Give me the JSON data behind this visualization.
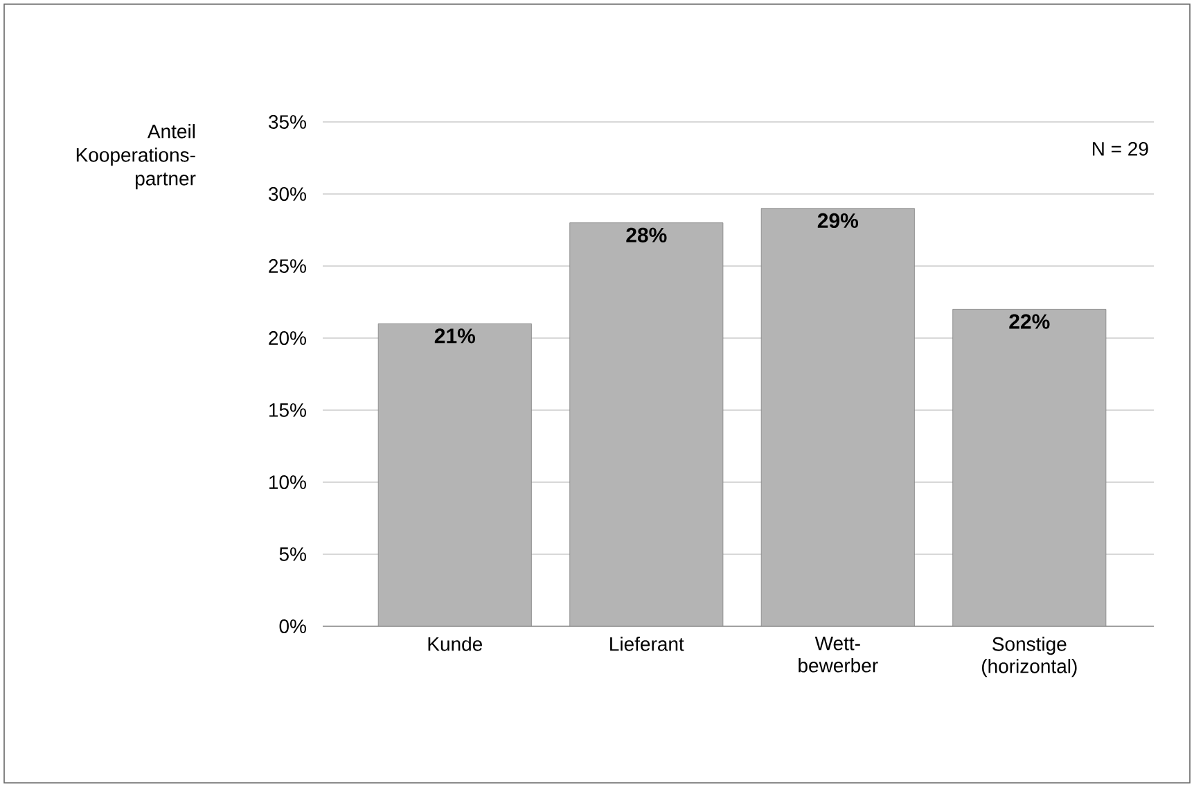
{
  "chart_data": {
    "type": "bar",
    "ylabel": "Anteil Kooperations-partner",
    "categories": [
      "Kunde",
      "Lieferant",
      "Wett- bewerber",
      "Sonstige (horizontal)"
    ],
    "values": [
      21,
      28,
      29,
      22
    ],
    "value_labels": [
      "21%",
      "28%",
      "29%",
      "22%"
    ],
    "color": "#b4b4b4",
    "ylim": [
      0,
      35
    ],
    "yticks": [
      {
        "value": 0,
        "label": "0%"
      },
      {
        "value": 5,
        "label": "5%"
      },
      {
        "value": 10,
        "label": "10%"
      },
      {
        "value": 15,
        "label": "15%"
      },
      {
        "value": 20,
        "label": "20%"
      },
      {
        "value": 25,
        "label": "25%"
      },
      {
        "value": 30,
        "label": "30%"
      },
      {
        "value": 35,
        "label": "35%"
      }
    ],
    "grid": "y",
    "annotations": [
      "N = 29"
    ]
  }
}
